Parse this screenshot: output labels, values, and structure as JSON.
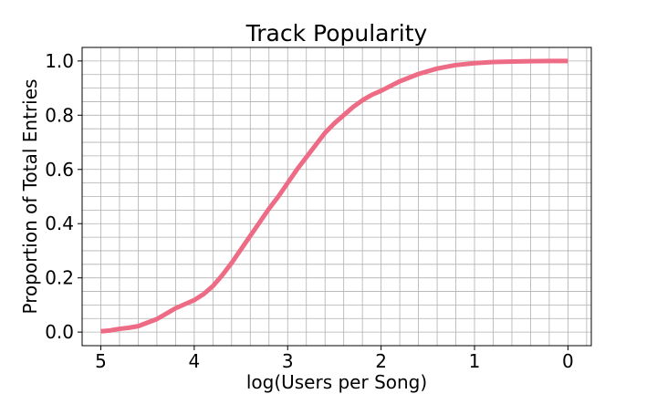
{
  "chart_data": {
    "type": "line",
    "title": "Track Popularity",
    "xlabel": "log(Users per Song)",
    "ylabel": "Proportion of Total Entries",
    "xlim": [
      5.2,
      -0.25
    ],
    "ylim": [
      -0.05,
      1.05
    ],
    "x_inverted": true,
    "xticks": [
      5,
      4,
      3,
      2,
      1,
      0
    ],
    "yticks": [
      0.0,
      0.2,
      0.4,
      0.6,
      0.8,
      1.0
    ],
    "xtick_labels": [
      "5",
      "4",
      "3",
      "2",
      "1",
      "0"
    ],
    "ytick_labels": [
      "0.0",
      "0.2",
      "0.4",
      "0.6",
      "0.8",
      "1.0"
    ],
    "grid": true,
    "grid_minor": true,
    "line_color": "#ee6b86",
    "series": [
      {
        "x": [
          5.0,
          4.9,
          4.8,
          4.7,
          4.6,
          4.5,
          4.4,
          4.3,
          4.2,
          4.1,
          4.0,
          3.9,
          3.8,
          3.7,
          3.6,
          3.5,
          3.4,
          3.3,
          3.2,
          3.1,
          3.0,
          2.9,
          2.8,
          2.7,
          2.6,
          2.5,
          2.4,
          2.3,
          2.2,
          2.1,
          2.0,
          1.8,
          1.6,
          1.4,
          1.2,
          1.0,
          0.8,
          0.6,
          0.4,
          0.2,
          0.0
        ],
        "y": [
          0.003,
          0.006,
          0.012,
          0.016,
          0.022,
          0.035,
          0.048,
          0.068,
          0.088,
          0.103,
          0.118,
          0.14,
          0.17,
          0.21,
          0.255,
          0.305,
          0.355,
          0.405,
          0.455,
          0.5,
          0.55,
          0.6,
          0.645,
          0.69,
          0.735,
          0.77,
          0.8,
          0.83,
          0.855,
          0.875,
          0.89,
          0.925,
          0.952,
          0.972,
          0.985,
          0.992,
          0.996,
          0.998,
          0.999,
          1.0,
          1.0
        ]
      }
    ]
  }
}
